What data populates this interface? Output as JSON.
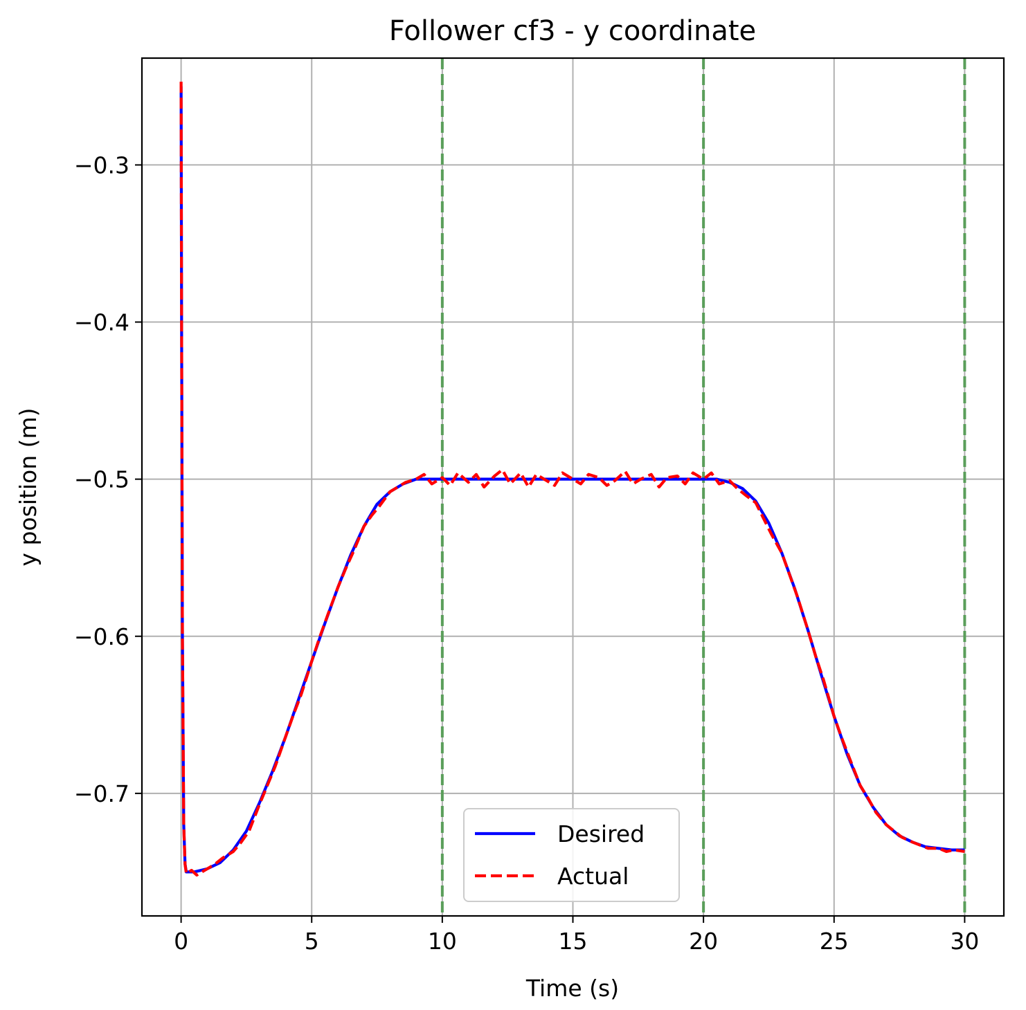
{
  "chart_data": {
    "type": "line",
    "title": "Follower cf3 - y coordinate",
    "xlabel": "Time (s)",
    "ylabel": "y position (m)",
    "xlim": [
      -1.5,
      31.5
    ],
    "ylim": [
      -0.778,
      -0.232
    ],
    "xticks": [
      0,
      5,
      10,
      15,
      20,
      25,
      30
    ],
    "yticks": [
      -0.3,
      -0.4,
      -0.5,
      -0.6,
      -0.7
    ],
    "ytick_labels": [
      "−0.3",
      "−0.4",
      "−0.5",
      "−0.6",
      "−0.7"
    ],
    "grid": true,
    "legend_position": "lower center",
    "vertical_lines": {
      "x": [
        10,
        20,
        30
      ],
      "color": "#5a9e5a",
      "style": "dashed"
    },
    "series": [
      {
        "name": "Desired",
        "color": "#0000ff",
        "style": "solid",
        "x": [
          0,
          0.02,
          0.05,
          0.1,
          0.15,
          0.2,
          0.5,
          1,
          1.5,
          2,
          2.5,
          3,
          3.5,
          4,
          4.5,
          5,
          5.5,
          6,
          6.5,
          7,
          7.5,
          8,
          8.5,
          9,
          9.5,
          10,
          11,
          12,
          13,
          14,
          15,
          16,
          17,
          18,
          19,
          20,
          20.5,
          21,
          21.5,
          22,
          22.5,
          23,
          23.5,
          24,
          24.5,
          25,
          25.5,
          26,
          26.5,
          27,
          27.5,
          28,
          28.5,
          29,
          29.5,
          30
        ],
        "values": [
          -0.25,
          -0.4,
          -0.6,
          -0.72,
          -0.745,
          -0.75,
          -0.75,
          -0.748,
          -0.744,
          -0.736,
          -0.724,
          -0.706,
          -0.686,
          -0.664,
          -0.64,
          -0.616,
          -0.592,
          -0.569,
          -0.548,
          -0.53,
          -0.516,
          -0.508,
          -0.503,
          -0.5,
          -0.5,
          -0.5,
          -0.5,
          -0.5,
          -0.5,
          -0.5,
          -0.5,
          -0.5,
          -0.5,
          -0.5,
          -0.5,
          -0.5,
          -0.5,
          -0.502,
          -0.506,
          -0.514,
          -0.528,
          -0.547,
          -0.57,
          -0.596,
          -0.624,
          -0.651,
          -0.675,
          -0.695,
          -0.709,
          -0.72,
          -0.727,
          -0.731,
          -0.734,
          -0.735,
          -0.736,
          -0.736
        ]
      },
      {
        "name": "Actual",
        "color": "#ff0000",
        "style": "dashed",
        "x": [
          0,
          0.02,
          0.05,
          0.1,
          0.15,
          0.2,
          0.4,
          0.6,
          0.8,
          1,
          1.3,
          1.6,
          2,
          2.3,
          2.6,
          3,
          3.3,
          3.6,
          4,
          4.3,
          4.6,
          5,
          5.3,
          5.6,
          6,
          6.3,
          6.6,
          7,
          7.3,
          7.6,
          8,
          8.3,
          8.6,
          9,
          9.3,
          9.6,
          10,
          10.3,
          10.6,
          11,
          11.3,
          11.6,
          12,
          12.3,
          12.6,
          13,
          13.3,
          13.6,
          14,
          14.3,
          14.6,
          15,
          15.3,
          15.6,
          16,
          16.3,
          16.6,
          17,
          17.3,
          17.6,
          18,
          18.3,
          18.6,
          19,
          19.3,
          19.6,
          20,
          20.3,
          20.6,
          21,
          21.3,
          21.6,
          22,
          22.3,
          22.6,
          23,
          23.3,
          23.6,
          24,
          24.3,
          24.6,
          25,
          25.3,
          25.6,
          26,
          26.3,
          26.6,
          27,
          27.3,
          27.6,
          28,
          28.3,
          28.6,
          29,
          29.3,
          29.6,
          30
        ],
        "values": [
          -0.247,
          -0.4,
          -0.6,
          -0.72,
          -0.745,
          -0.751,
          -0.749,
          -0.752,
          -0.75,
          -0.748,
          -0.745,
          -0.741,
          -0.737,
          -0.731,
          -0.724,
          -0.707,
          -0.695,
          -0.683,
          -0.664,
          -0.65,
          -0.637,
          -0.616,
          -0.601,
          -0.587,
          -0.569,
          -0.557,
          -0.546,
          -0.53,
          -0.523,
          -0.517,
          -0.508,
          -0.505,
          -0.502,
          -0.5,
          -0.497,
          -0.503,
          -0.499,
          -0.504,
          -0.496,
          -0.502,
          -0.497,
          -0.505,
          -0.498,
          -0.494,
          -0.503,
          -0.496,
          -0.505,
          -0.497,
          -0.501,
          -0.504,
          -0.496,
          -0.5,
          -0.503,
          -0.497,
          -0.499,
          -0.504,
          -0.501,
          -0.495,
          -0.503,
          -0.5,
          -0.497,
          -0.505,
          -0.499,
          -0.498,
          -0.503,
          -0.496,
          -0.5,
          -0.496,
          -0.503,
          -0.501,
          -0.506,
          -0.51,
          -0.515,
          -0.525,
          -0.535,
          -0.547,
          -0.561,
          -0.575,
          -0.596,
          -0.613,
          -0.628,
          -0.651,
          -0.665,
          -0.678,
          -0.695,
          -0.703,
          -0.712,
          -0.72,
          -0.724,
          -0.728,
          -0.731,
          -0.733,
          -0.735,
          -0.735,
          -0.737,
          -0.736,
          -0.737
        ]
      }
    ]
  }
}
